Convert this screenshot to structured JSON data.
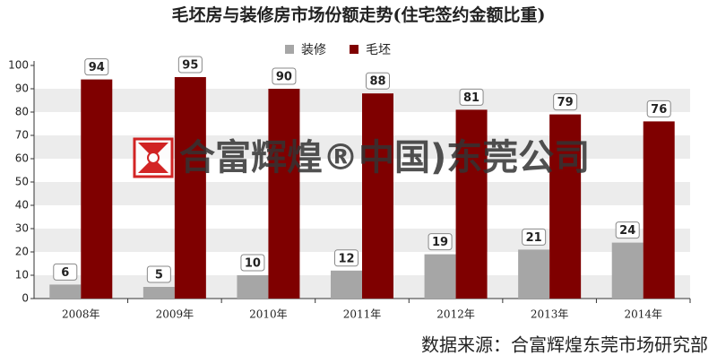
{
  "chart_data": {
    "type": "bar",
    "title": "毛坯房与装修房市场份额走势(住宅签约金额比重)",
    "categories": [
      "2008年",
      "2009年",
      "2010年",
      "2011年",
      "2012年",
      "2013年",
      "2014年"
    ],
    "series": [
      {
        "name": "装修",
        "color": "#a6a6a6",
        "values": [
          6,
          5,
          10,
          12,
          19,
          21,
          24
        ]
      },
      {
        "name": "毛坯",
        "color": "#7f0000",
        "values": [
          94,
          95,
          90,
          88,
          81,
          79,
          76
        ]
      }
    ],
    "ylim": [
      0,
      100
    ],
    "yticks": [
      0,
      10,
      20,
      30,
      40,
      50,
      60,
      70,
      80,
      90,
      100
    ],
    "grid": true,
    "legend": "top",
    "watermark": "合富辉煌®中国)东莞公司",
    "source": "数据来源：合富辉煌东莞市场研究部"
  }
}
